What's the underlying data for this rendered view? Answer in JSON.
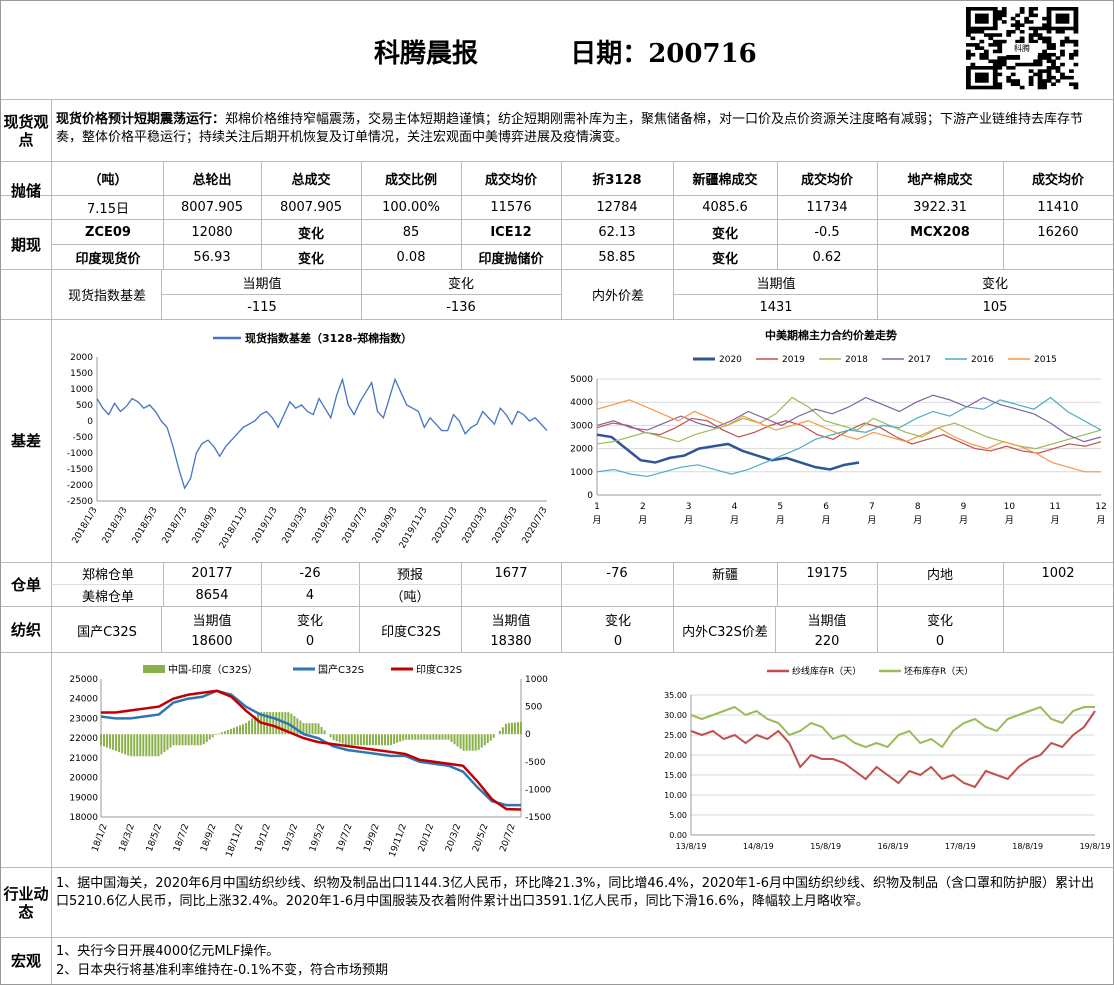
{
  "header": {
    "title": "科腾晨报",
    "date_label": "日期：200716"
  },
  "qr_caption": "科腾",
  "spot": {
    "label": "现货观点",
    "bold_lead": "现货价格预计短期震荡运行：",
    "text": "郑棉价格维持窄幅震荡，交易主体短期趋谨慎；纺企短期刚需补库为主，聚焦储备棉，对一口价及点价资源关注度略有减弱；下游产业链维持去库存节奏，整体价格平稳运行；持续关注后期开机恢复及订单情况，关注宏观面中美博弈进展及疫情演变。"
  },
  "reserve": {
    "label": "抛储",
    "headers": [
      "（吨）",
      "总轮出",
      "总成交",
      "成交比例",
      "成交均价",
      "折3128",
      "新疆棉成交",
      "成交均价",
      "地产棉成交",
      "成交均价"
    ],
    "row": [
      "7.15日",
      "8007.905",
      "8007.905",
      "100.00%",
      "11576",
      "12784",
      "4085.6",
      "11734",
      "3922.31",
      "11410"
    ]
  },
  "futures": {
    "label": "期现",
    "row1": [
      "ZCE09",
      "12080",
      "变化",
      "85",
      "ICE12",
      "62.13",
      "变化",
      "-0.5",
      "MCX208",
      "16260"
    ],
    "row2": [
      "印度现货价",
      "56.93",
      "变化",
      "0.08",
      "印度抛储价",
      "58.85",
      "变化",
      "0.62"
    ]
  },
  "basis": {
    "label": "基差",
    "left_label": "现货指数基差",
    "cur_label": "当期值",
    "chg_label": "变化",
    "cur": "-115",
    "chg": "-136",
    "right_label": "内外价差",
    "cur_label2": "当期值",
    "chg_label2": "变化",
    "cur2": "1431",
    "chg2": "105"
  },
  "warehouse": {
    "label": "仓单",
    "r1": [
      "郑棉仓单",
      "20177",
      "-26",
      "预报",
      "1677",
      "-76",
      "新疆",
      "19175",
      "内地",
      "1002"
    ],
    "r2": [
      "美棉仓单",
      "8654",
      "4",
      "（吨）"
    ]
  },
  "textile": {
    "label": "纺织",
    "a": "国产C32S",
    "b": "印度C32S",
    "c": "内外C32S价差",
    "cur": "当期值",
    "chg": "变化",
    "v": [
      "18600",
      "0",
      "18380",
      "0",
      "220",
      "0"
    ]
  },
  "industry": {
    "label": "行业动态",
    "text": "1、据中国海关，2020年6月中国纺织纱线、织物及制品出口1144.3亿人民币，环比降21.3%，同比增46.4%，2020年1-6月中国纺织纱线、织物及制品（含口罩和防护服）累计出口5210.6亿人民币，同比上涨32.4%。2020年1-6月中国服装及衣着附件累计出口3591.1亿人民币，同比下滑16.6%，降幅较上月略收窄。"
  },
  "macro": {
    "label": "宏观",
    "l1": "1、央行今日开展4000亿元MLF操作。",
    "l2": "2、日本央行将基准利率维持在-0.1%不变，符合市场预期"
  },
  "chart_data": [
    {
      "type": "line",
      "title": "",
      "legend": [
        "现货指数基差（3128-郑棉指数）"
      ],
      "ylim": [
        -2500,
        2000
      ],
      "yticks": [
        "2000",
        "1500",
        "1000",
        "500",
        "0",
        "-500",
        "-1000",
        "-1500",
        "-2000",
        "-2500"
      ],
      "xticks": [
        "2018/1/3",
        "2018/3/3",
        "2018/5/3",
        "2018/7/3",
        "2018/9/3",
        "2018/11/3",
        "2019/1/3",
        "2019/3/3",
        "2019/5/3",
        "2019/7/3",
        "2019/9/3",
        "2019/11/3",
        "2020/1/3",
        "2020/3/3",
        "2020/5/3",
        "2020/7/3"
      ],
      "series": [
        {
          "name": "现货指数基差（3128-郑棉指数）",
          "color": "#4472C4",
          "values": [
            700,
            400,
            200,
            550,
            300,
            450,
            700,
            600,
            400,
            500,
            300,
            0,
            -200,
            -800,
            -1500,
            -2100,
            -1800,
            -1000,
            -700,
            -600,
            -800,
            -1100,
            -800,
            -600,
            -400,
            -200,
            -100,
            0,
            200,
            300,
            100,
            -200,
            200,
            600,
            400,
            500,
            300,
            200,
            700,
            400,
            100,
            800,
            1300,
            500,
            200,
            600,
            900,
            1200,
            300,
            100,
            700,
            1300,
            900,
            500,
            400,
            300,
            -200,
            100,
            -100,
            -300,
            -300,
            200,
            0,
            -400,
            -200,
            -100,
            300,
            100,
            -100,
            400,
            200,
            -100,
            300,
            200,
            0,
            100,
            -100,
            -300
          ]
        }
      ]
    },
    {
      "type": "line",
      "title": "中美期棉主力合约价差走势",
      "ylim": [
        0,
        5000
      ],
      "yticks": [
        "5000",
        "4000",
        "3000",
        "2000",
        "1000",
        "0"
      ],
      "xticks": [
        "1月",
        "2月",
        "3月",
        "4月",
        "5月",
        "6月",
        "7月",
        "8月",
        "9月",
        "10月",
        "11月",
        "12月"
      ],
      "series": [
        {
          "name": "2020",
          "color": "#2F5597",
          "values": [
            2600,
            2500,
            2000,
            1500,
            1400,
            1600,
            1700,
            2000,
            2100,
            2200,
            1900,
            1700,
            1500,
            1600,
            1400,
            1200,
            1100,
            1300,
            1400
          ]
        },
        {
          "name": "2019",
          "color": "#C0504D",
          "values": [
            2900,
            3100,
            3000,
            2700,
            2600,
            2900,
            3300,
            3200,
            2800,
            2500,
            2700,
            3000,
            3200,
            3000,
            2600,
            2400,
            2800,
            3100,
            2900,
            2500,
            2200,
            2400,
            2600,
            2300,
            2000,
            1900,
            2100,
            1900,
            1800,
            2000,
            2200,
            2100,
            2300
          ]
        },
        {
          "name": "2018",
          "color": "#9BBB59",
          "values": [
            2200,
            2300,
            2500,
            2700,
            2500,
            2300,
            2600,
            2800,
            3000,
            3300,
            3100,
            3500,
            4200,
            3800,
            3200,
            3000,
            2800,
            3300,
            3000,
            2700,
            2500,
            2900,
            3100,
            2800,
            2500,
            2300,
            2100,
            2000,
            2200,
            2400,
            2600,
            2800
          ]
        },
        {
          "name": "2017",
          "color": "#8064A2",
          "values": [
            3000,
            3200,
            2900,
            2800,
            3100,
            3400,
            3100,
            2900,
            3200,
            3600,
            3300,
            3000,
            3400,
            3700,
            3500,
            3800,
            4200,
            3900,
            3600,
            4000,
            4300,
            4100,
            3800,
            4200,
            3900,
            3700,
            3500,
            3100,
            2600,
            2300,
            2500
          ]
        },
        {
          "name": "2016",
          "color": "#4BACC6",
          "values": [
            1000,
            1100,
            900,
            800,
            1000,
            1200,
            1300,
            1100,
            900,
            1100,
            1400,
            1700,
            2000,
            2400,
            2600,
            2800,
            2700,
            3000,
            2900,
            3300,
            3600,
            3400,
            3800,
            3700,
            4100,
            3900,
            3700,
            4200,
            3600,
            3200,
            2800
          ]
        },
        {
          "name": "2015",
          "color": "#F79646",
          "values": [
            3700,
            3900,
            4100,
            3800,
            3500,
            3200,
            3600,
            3300,
            3000,
            3400,
            3100,
            2800,
            3000,
            3200,
            2900,
            2600,
            2400,
            2700,
            2500,
            2300,
            2600,
            2900,
            2500,
            2200,
            2000,
            2300,
            2100,
            1800,
            1400,
            1200,
            1000,
            1000
          ]
        }
      ]
    },
    {
      "type": "line",
      "title": "",
      "legend": [
        "中国-印度（C32S）",
        "国产C32S",
        "印度C32S"
      ],
      "ylim": [
        18000,
        25000
      ],
      "y2lim": [
        -1500,
        1000
      ],
      "yticks": [
        "25000",
        "24000",
        "23000",
        "22000",
        "21000",
        "20000",
        "19000",
        "18000"
      ],
      "y2ticks": [
        "1000",
        "500",
        "0",
        "-500",
        "-1000",
        "-1500"
      ],
      "xticks": [
        "18/1/2",
        "18/3/2",
        "18/5/2",
        "18/7/2",
        "18/9/2",
        "18/11/2",
        "19/1/2",
        "19/3/2",
        "19/5/2",
        "19/7/2",
        "19/9/2",
        "19/11/2",
        "20/1/2",
        "20/3/2",
        "20/5/2",
        "20/7/2"
      ],
      "series": [
        {
          "name": "国产C32S",
          "color": "#2E75B6",
          "values": [
            23100,
            23000,
            23000,
            23100,
            23200,
            23800,
            24000,
            24100,
            24400,
            24200,
            23600,
            23200,
            23000,
            22700,
            22200,
            22000,
            21600,
            21400,
            21300,
            21200,
            21100,
            21100,
            20800,
            20700,
            20600,
            20300,
            19500,
            18800,
            18600,
            18600
          ]
        },
        {
          "name": "印度C32S",
          "color": "#C00000",
          "values": [
            23300,
            23300,
            23400,
            23500,
            23600,
            24000,
            24200,
            24300,
            24400,
            24100,
            23400,
            22800,
            22600,
            22300,
            22000,
            21800,
            21700,
            21600,
            21500,
            21400,
            21300,
            21200,
            20900,
            20800,
            20700,
            20600,
            19800,
            18900,
            18400,
            18380
          ]
        },
        {
          "name": "中国-印度（C32S）",
          "color": "#8AB04A",
          "values": [
            -200,
            -300,
            -400,
            -400,
            -400,
            -200,
            -200,
            -200,
            0,
            100,
            200,
            400,
            400,
            400,
            200,
            200,
            -100,
            -200,
            -200,
            -200,
            -200,
            -100,
            -100,
            -100,
            -100,
            -300,
            -300,
            -100,
            200,
            220
          ]
        }
      ]
    },
    {
      "type": "line",
      "title": "",
      "legend": [
        "纱线库存R（天）",
        "坯布库存R（天）"
      ],
      "ylim": [
        0,
        35
      ],
      "yticks": [
        "35.00",
        "30.00",
        "25.00",
        "20.00",
        "15.00",
        "10.00",
        "5.00",
        "0.00"
      ],
      "xticks": [
        "13/8/19",
        "14/8/19",
        "15/8/19",
        "16/8/19",
        "17/8/19",
        "18/8/19",
        "19/8/19"
      ],
      "series": [
        {
          "name": "纱线库存R（天）",
          "color": "#C0504D",
          "values": [
            26,
            25,
            26,
            24,
            25,
            23,
            25,
            24,
            26,
            23,
            17,
            20,
            19,
            19,
            18,
            16,
            14,
            17,
            15,
            13,
            16,
            15,
            17,
            14,
            15,
            13,
            12,
            16,
            15,
            14,
            17,
            19,
            20,
            23,
            22,
            25,
            27,
            31
          ]
        },
        {
          "name": "坯布库存R（天）",
          "color": "#9BBB59",
          "values": [
            30,
            29,
            30,
            31,
            32,
            30,
            31,
            29,
            28,
            25,
            26,
            28,
            27,
            24,
            25,
            23,
            22,
            23,
            22,
            25,
            26,
            23,
            24,
            22,
            26,
            28,
            29,
            27,
            26,
            29,
            30,
            31,
            32,
            29,
            28,
            31,
            32,
            32
          ]
        }
      ]
    }
  ]
}
